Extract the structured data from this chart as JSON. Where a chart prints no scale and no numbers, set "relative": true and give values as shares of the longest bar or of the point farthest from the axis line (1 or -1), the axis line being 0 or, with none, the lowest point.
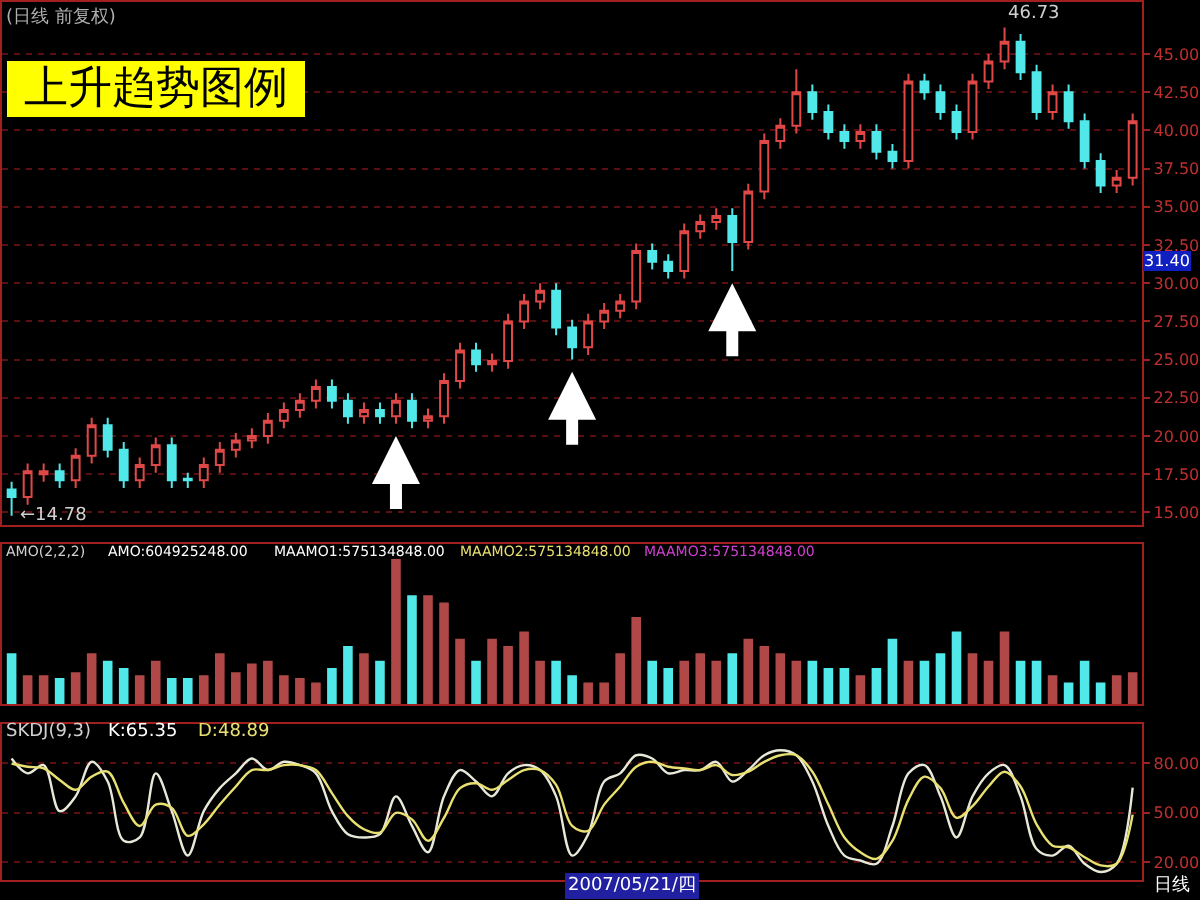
{
  "chart_data": [
    {
      "type": "candlestick",
      "title": "上升趋势图例",
      "subtitle": "(日线 前复权)",
      "categories": [
        null,
        null,
        null,
        null,
        null,
        null,
        null,
        null,
        null,
        null,
        null,
        null,
        null,
        null,
        null,
        null,
        null,
        null,
        null,
        null,
        null,
        null,
        null,
        null,
        null,
        null,
        null,
        null,
        null,
        null,
        null,
        null,
        null,
        null,
        null,
        null,
        null,
        null,
        null,
        null,
        null,
        null,
        null,
        null,
        null,
        null,
        null,
        null,
        null,
        null,
        null,
        null,
        null,
        null,
        null,
        null,
        null,
        null,
        null,
        null,
        null,
        null,
        null,
        null,
        null,
        null,
        null,
        null,
        null,
        null,
        null
      ],
      "ohlc": [
        [
          16.5,
          17.0,
          14.78,
          16.0
        ],
        [
          16.0,
          18.2,
          15.5,
          17.7
        ],
        [
          17.5,
          18.2,
          17.0,
          17.7
        ],
        [
          17.7,
          18.2,
          16.6,
          17.1
        ],
        [
          17.1,
          19.2,
          16.6,
          18.7
        ],
        [
          18.7,
          21.2,
          18.2,
          20.7
        ],
        [
          20.7,
          21.2,
          18.6,
          19.1
        ],
        [
          19.1,
          19.6,
          16.6,
          17.1
        ],
        [
          17.1,
          18.6,
          16.6,
          18.1
        ],
        [
          18.1,
          19.9,
          17.6,
          19.4
        ],
        [
          19.4,
          19.9,
          16.6,
          17.1
        ],
        [
          17.2,
          17.6,
          16.6,
          17.1
        ],
        [
          17.1,
          18.6,
          16.6,
          18.1
        ],
        [
          18.1,
          19.6,
          17.6,
          19.1
        ],
        [
          19.1,
          20.2,
          18.6,
          19.7
        ],
        [
          19.7,
          20.5,
          19.2,
          20.0
        ],
        [
          20.0,
          21.5,
          19.5,
          21.0
        ],
        [
          21.0,
          22.2,
          20.5,
          21.7
        ],
        [
          21.7,
          22.8,
          21.2,
          22.3
        ],
        [
          22.3,
          23.7,
          21.8,
          23.2
        ],
        [
          23.2,
          23.7,
          21.8,
          22.3
        ],
        [
          22.3,
          22.8,
          20.8,
          21.3
        ],
        [
          21.3,
          22.2,
          20.8,
          21.7
        ],
        [
          21.7,
          22.2,
          20.8,
          21.3
        ],
        [
          21.3,
          22.8,
          20.8,
          22.3
        ],
        [
          22.3,
          22.8,
          20.5,
          21.0
        ],
        [
          21.0,
          21.8,
          20.5,
          21.3
        ],
        [
          21.3,
          24.1,
          20.8,
          23.6
        ],
        [
          23.6,
          26.1,
          23.1,
          25.6
        ],
        [
          25.6,
          26.1,
          24.2,
          24.7
        ],
        [
          24.7,
          25.4,
          24.2,
          24.9
        ],
        [
          24.9,
          28.0,
          24.4,
          27.5
        ],
        [
          27.5,
          29.3,
          27.0,
          28.8
        ],
        [
          28.8,
          30.0,
          28.3,
          29.5
        ],
        [
          29.5,
          30.0,
          26.6,
          27.1
        ],
        [
          27.1,
          27.6,
          25.0,
          25.8
        ],
        [
          25.8,
          28.0,
          25.3,
          27.5
        ],
        [
          27.5,
          28.7,
          27.0,
          28.2
        ],
        [
          28.2,
          29.3,
          27.7,
          28.8
        ],
        [
          28.8,
          32.6,
          28.3,
          32.1
        ],
        [
          32.1,
          32.6,
          30.9,
          31.4
        ],
        [
          31.4,
          31.9,
          30.3,
          30.8
        ],
        [
          30.8,
          33.9,
          30.3,
          33.4
        ],
        [
          33.4,
          34.5,
          32.9,
          34.0
        ],
        [
          34.0,
          34.9,
          33.5,
          34.4
        ],
        [
          34.4,
          34.9,
          30.8,
          32.7
        ],
        [
          32.7,
          36.5,
          32.2,
          36.0
        ],
        [
          36.0,
          39.8,
          35.5,
          39.3
        ],
        [
          39.3,
          40.8,
          38.8,
          40.3
        ],
        [
          40.3,
          44.0,
          39.8,
          42.5
        ],
        [
          42.5,
          43.0,
          40.7,
          41.2
        ],
        [
          41.2,
          41.7,
          39.4,
          39.9
        ],
        [
          39.9,
          40.4,
          38.8,
          39.3
        ],
        [
          39.3,
          40.4,
          38.8,
          39.9
        ],
        [
          39.9,
          40.4,
          38.1,
          38.6
        ],
        [
          38.6,
          39.1,
          37.5,
          38.0
        ],
        [
          38.0,
          43.7,
          37.5,
          43.2
        ],
        [
          43.2,
          43.7,
          42.0,
          42.5
        ],
        [
          42.5,
          43.0,
          40.7,
          41.2
        ],
        [
          41.2,
          41.7,
          39.4,
          39.9
        ],
        [
          39.9,
          43.7,
          39.4,
          43.2
        ],
        [
          43.2,
          45.0,
          42.7,
          44.5
        ],
        [
          44.5,
          46.73,
          44.0,
          45.8
        ],
        [
          45.8,
          46.3,
          43.3,
          43.8
        ],
        [
          43.8,
          44.3,
          40.7,
          41.2
        ],
        [
          41.2,
          43.0,
          40.7,
          42.5
        ],
        [
          42.5,
          43.0,
          40.1,
          40.6
        ],
        [
          40.6,
          41.1,
          37.5,
          38.0
        ],
        [
          38.0,
          38.5,
          35.9,
          36.4
        ],
        [
          36.4,
          37.4,
          35.9,
          36.9
        ],
        [
          36.9,
          41.1,
          36.4,
          40.6
        ]
      ],
      "colors": [
        "#50e8e8",
        "#e04848",
        "#e04848",
        "#50e8e8",
        "#e04848",
        "#e04848",
        "#50e8e8",
        "#50e8e8",
        "#e04848",
        "#e04848",
        "#50e8e8",
        "#50e8e8",
        "#e04848",
        "#e04848",
        "#e04848",
        "#e04848",
        "#e04848",
        "#e04848",
        "#e04848",
        "#e04848",
        "#50e8e8",
        "#50e8e8",
        "#e04848",
        "#50e8e8",
        "#e04848",
        "#50e8e8",
        "#e04848",
        "#e04848",
        "#e04848",
        "#50e8e8",
        "#e04848",
        "#e04848",
        "#e04848",
        "#e04848",
        "#50e8e8",
        "#50e8e8",
        "#e04848",
        "#e04848",
        "#e04848",
        "#e04848",
        "#50e8e8",
        "#50e8e8",
        "#e04848",
        "#e04848",
        "#e04848",
        "#50e8e8",
        "#e04848",
        "#e04848",
        "#e04848",
        "#e04848",
        "#50e8e8",
        "#50e8e8",
        "#50e8e8",
        "#e04848",
        "#50e8e8",
        "#50e8e8",
        "#e04848",
        "#50e8e8",
        "#50e8e8",
        "#50e8e8",
        "#e04848",
        "#e04848",
        "#e04848",
        "#50e8e8",
        "#50e8e8",
        "#e04848",
        "#50e8e8",
        "#50e8e8",
        "#50e8e8",
        "#e04848",
        "#e04848"
      ],
      "ylim": [
        14.2,
        48.4
      ],
      "yticks": [
        {
          "value": 15,
          "label": "15.00"
        },
        {
          "value": 17.5,
          "label": "17.50"
        },
        {
          "value": 20,
          "label": "20.00"
        },
        {
          "value": 22.5,
          "label": "22.50"
        },
        {
          "value": 25,
          "label": "25.00"
        },
        {
          "value": 27.5,
          "label": "27.50"
        },
        {
          "value": 30,
          "label": "30.00"
        },
        {
          "value": 32.5,
          "label": "32.50"
        },
        {
          "value": 35,
          "label": "35.00"
        },
        {
          "value": 37.5,
          "label": "37.50"
        },
        {
          "value": 40,
          "label": "40.00"
        },
        {
          "value": 42.5,
          "label": "42.50"
        },
        {
          "value": 45,
          "label": "45.00"
        }
      ],
      "grid": "y",
      "tick_labels": "y",
      "annotations": [
        "←14.78",
        "46.73",
        {
          "text": "31.40",
          "y": 31.4
        }
      ]
    },
    {
      "type": "bar",
      "relative": true,
      "tick_labels": false,
      "categories": [
        null,
        null,
        null,
        null,
        null,
        null,
        null,
        null,
        null,
        null,
        null,
        null,
        null,
        null,
        null,
        null,
        null,
        null,
        null,
        null,
        null,
        null,
        null,
        null,
        null,
        null,
        null,
        null,
        null,
        null,
        null,
        null,
        null,
        null,
        null,
        null,
        null,
        null,
        null,
        null,
        null,
        null,
        null,
        null,
        null,
        null,
        null,
        null,
        null,
        null,
        null,
        null,
        null,
        null,
        null,
        null,
        null,
        null,
        null,
        null,
        null,
        null,
        null,
        null,
        null,
        null,
        null,
        null,
        null,
        null,
        null
      ],
      "values": [
        0.35,
        0.2,
        0.2,
        0.18,
        0.22,
        0.35,
        0.3,
        0.25,
        0.2,
        0.3,
        0.18,
        0.18,
        0.2,
        0.35,
        0.22,
        0.28,
        0.3,
        0.2,
        0.18,
        0.15,
        0.25,
        0.4,
        0.35,
        0.3,
        1.0,
        0.75,
        0.75,
        0.7,
        0.45,
        0.3,
        0.45,
        0.4,
        0.5,
        0.3,
        0.3,
        0.2,
        0.15,
        0.15,
        0.35,
        0.6,
        0.3,
        0.25,
        0.3,
        0.35,
        0.3,
        0.35,
        0.45,
        0.4,
        0.35,
        0.3,
        0.3,
        0.25,
        0.25,
        0.2,
        0.25,
        0.45,
        0.3,
        0.3,
        0.35,
        0.5,
        0.35,
        0.3,
        0.5,
        0.3,
        0.3,
        0.2,
        0.15,
        0.3,
        0.15,
        0.2,
        0.22
      ],
      "colors": [
        "#50e8e8",
        "#b04848",
        "#b04848",
        "#50e8e8",
        "#b04848",
        "#b04848",
        "#50e8e8",
        "#50e8e8",
        "#b04848",
        "#b04848",
        "#50e8e8",
        "#50e8e8",
        "#b04848",
        "#b04848",
        "#b04848",
        "#b04848",
        "#b04848",
        "#b04848",
        "#b04848",
        "#b04848",
        "#50e8e8",
        "#50e8e8",
        "#b04848",
        "#50e8e8",
        "#b04848",
        "#50e8e8",
        "#b04848",
        "#b04848",
        "#b04848",
        "#50e8e8",
        "#b04848",
        "#b04848",
        "#b04848",
        "#b04848",
        "#50e8e8",
        "#50e8e8",
        "#b04848",
        "#b04848",
        "#b04848",
        "#b04848",
        "#50e8e8",
        "#50e8e8",
        "#b04848",
        "#b04848",
        "#b04848",
        "#50e8e8",
        "#b04848",
        "#b04848",
        "#b04848",
        "#b04848",
        "#50e8e8",
        "#50e8e8",
        "#50e8e8",
        "#b04848",
        "#50e8e8",
        "#50e8e8",
        "#b04848",
        "#50e8e8",
        "#50e8e8",
        "#50e8e8",
        "#b04848",
        "#b04848",
        "#b04848",
        "#50e8e8",
        "#50e8e8",
        "#b04848",
        "#50e8e8",
        "#50e8e8",
        "#50e8e8",
        "#b04848",
        "#b04848"
      ],
      "annotations": [
        "AMO(2,2,2)",
        "AMO:604925248.00",
        "MAAMO1:575134848.00",
        "MAAMO2:575134848.00",
        "MAAMO3:575134848.00"
      ]
    },
    {
      "type": "line",
      "grid": "y",
      "tick_labels": "y",
      "categories": [
        null,
        null,
        null,
        null,
        null,
        null,
        null,
        null,
        null,
        null,
        null,
        null,
        null,
        null,
        null,
        null,
        null,
        null,
        null,
        null,
        null,
        null,
        null,
        null,
        null,
        null,
        null,
        null,
        null,
        null,
        null,
        null,
        null,
        null,
        null,
        null,
        null,
        null,
        null,
        null,
        null,
        null,
        null,
        null,
        null,
        null,
        null,
        null,
        null,
        null,
        null,
        null,
        null,
        null,
        null,
        null,
        null,
        null,
        null,
        null,
        null,
        null,
        null,
        null,
        null,
        null,
        null,
        null,
        null,
        null,
        null
      ],
      "series": [
        {
          "color": "#e8e8d8",
          "values": [
            83,
            74,
            79,
            51,
            60,
            81,
            69,
            33,
            35,
            74,
            51,
            24,
            51,
            65,
            74,
            83,
            76,
            81,
            79,
            74,
            51,
            37,
            35,
            37,
            60,
            42,
            26,
            60,
            76,
            69,
            60,
            74,
            79,
            76,
            60,
            24,
            37,
            69,
            74,
            85,
            83,
            74,
            76,
            76,
            81,
            69,
            76,
            85,
            88,
            85,
            69,
            42,
            24,
            21,
            19,
            42,
            74,
            79,
            60,
            35,
            60,
            74,
            79,
            60,
            28,
            24,
            30,
            19,
            14,
            19,
            65.35
          ]
        },
        {
          "color": "#e8e070",
          "values": [
            80,
            78,
            77,
            70,
            64,
            72,
            75,
            56,
            42,
            55,
            53,
            36,
            43,
            55,
            66,
            76,
            76,
            79,
            79,
            76,
            62,
            48,
            40,
            38,
            50,
            46,
            33,
            47,
            65,
            68,
            64,
            70,
            76,
            76,
            67,
            42,
            39,
            55,
            66,
            78,
            81,
            78,
            77,
            76,
            79,
            73,
            75,
            81,
            85,
            85,
            75,
            55,
            35,
            26,
            22,
            33,
            58,
            72,
            65,
            47,
            54,
            66,
            75,
            66,
            43,
            30,
            29,
            23,
            18,
            19,
            48.89
          ]
        }
      ],
      "ylim": [
        9,
        104
      ],
      "yticks": [
        {
          "value": 20,
          "label": "20.00"
        },
        {
          "value": 50,
          "label": "50.00"
        },
        {
          "value": 80,
          "label": "80.00"
        }
      ],
      "annotations": [
        "SKDJ(9,3)",
        "K:65.35",
        "D:48.89",
        "2007/05/21/四",
        "日线"
      ]
    }
  ]
}
